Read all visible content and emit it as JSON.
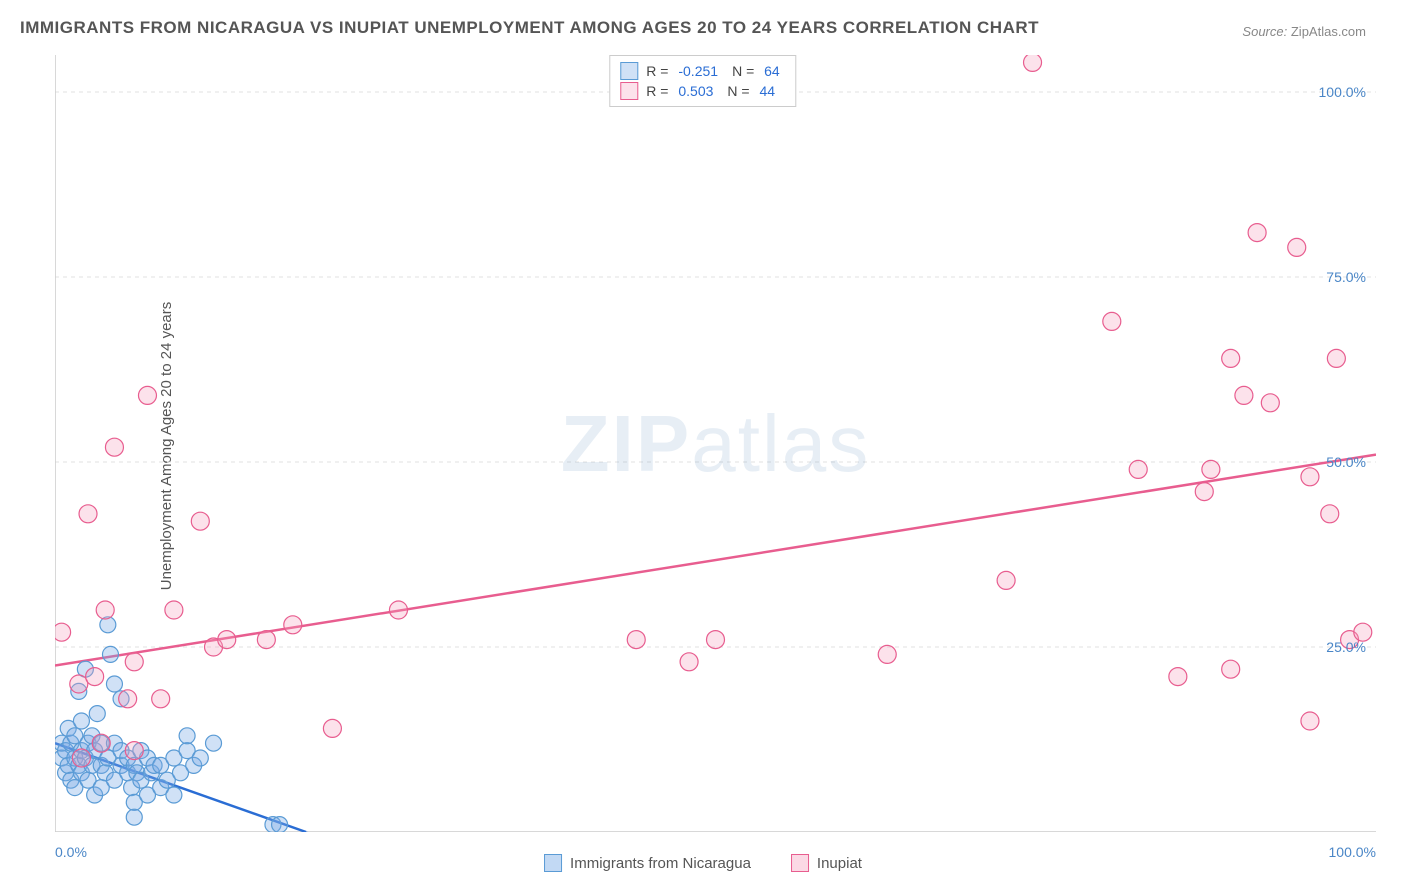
{
  "title": "IMMIGRANTS FROM NICARAGUA VS INUPIAT UNEMPLOYMENT AMONG AGES 20 TO 24 YEARS CORRELATION CHART",
  "source": {
    "label": "Source:",
    "value": "ZipAtlas.com"
  },
  "ylabel": "Unemployment Among Ages 20 to 24 years",
  "watermark": {
    "bold": "ZIP",
    "rest": "atlas"
  },
  "chart": {
    "type": "scatter",
    "xlim": [
      0,
      100
    ],
    "ylim": [
      0,
      105
    ],
    "xtick_positions": [
      0,
      20,
      40,
      60,
      80,
      100
    ],
    "ytick_positions": [
      25,
      50,
      75,
      100
    ],
    "ytick_labels": [
      "25.0%",
      "50.0%",
      "75.0%",
      "100.0%"
    ],
    "x_min_label": "0.0%",
    "x_max_label": "100.0%",
    "background_color": "#ffffff",
    "grid_color": "#e0e0e0",
    "axis_color": "#cccccc",
    "value_color": "#2a6dd4",
    "label_color": "#4a86c7",
    "series": [
      {
        "name": "Immigrants from Nicaragua",
        "marker_color_fill": "rgba(120,170,230,0.35)",
        "marker_color_stroke": "#5a9bd5",
        "line_color": "#2a6dd4",
        "marker_radius": 8,
        "correlation": {
          "R": "-0.251",
          "N": "64"
        },
        "trend": {
          "x1": 0,
          "y1": 12,
          "x2": 19,
          "y2": 0,
          "dash_ext_x": 28
        },
        "points": [
          [
            0.5,
            10
          ],
          [
            0.5,
            12
          ],
          [
            0.8,
            8
          ],
          [
            0.8,
            11
          ],
          [
            1.0,
            14
          ],
          [
            1.0,
            9
          ],
          [
            1.2,
            12
          ],
          [
            1.2,
            7
          ],
          [
            1.5,
            10
          ],
          [
            1.5,
            13
          ],
          [
            1.5,
            6
          ],
          [
            1.8,
            19
          ],
          [
            1.8,
            9
          ],
          [
            2.0,
            11
          ],
          [
            2.0,
            8
          ],
          [
            2.0,
            15
          ],
          [
            2.3,
            22
          ],
          [
            2.3,
            10
          ],
          [
            2.5,
            7
          ],
          [
            2.5,
            12
          ],
          [
            2.8,
            9
          ],
          [
            2.8,
            13
          ],
          [
            3.0,
            5
          ],
          [
            3.0,
            11
          ],
          [
            3.2,
            16
          ],
          [
            3.5,
            9
          ],
          [
            3.5,
            12
          ],
          [
            3.5,
            6
          ],
          [
            3.8,
            8
          ],
          [
            4.0,
            28
          ],
          [
            4.0,
            10
          ],
          [
            4.2,
            24
          ],
          [
            4.5,
            7
          ],
          [
            4.5,
            12
          ],
          [
            4.5,
            20
          ],
          [
            5.0,
            9
          ],
          [
            5.0,
            11
          ],
          [
            5.0,
            18
          ],
          [
            5.5,
            8
          ],
          [
            5.5,
            10
          ],
          [
            5.8,
            6
          ],
          [
            6.0,
            9
          ],
          [
            6.0,
            4
          ],
          [
            6.2,
            8
          ],
          [
            6.5,
            11
          ],
          [
            6.5,
            7
          ],
          [
            7.0,
            10
          ],
          [
            7.0,
            5
          ],
          [
            7.3,
            8
          ],
          [
            7.5,
            9
          ],
          [
            8.0,
            6
          ],
          [
            8.0,
            9
          ],
          [
            8.5,
            7
          ],
          [
            9.0,
            10
          ],
          [
            9.0,
            5
          ],
          [
            9.5,
            8
          ],
          [
            10.0,
            11
          ],
          [
            10.0,
            13
          ],
          [
            10.5,
            9
          ],
          [
            11.0,
            10
          ],
          [
            12.0,
            12
          ],
          [
            16.5,
            1
          ],
          [
            17.0,
            1
          ],
          [
            6.0,
            2
          ]
        ]
      },
      {
        "name": "Inupiat",
        "marker_color_fill": "rgba(245,160,190,0.30)",
        "marker_color_stroke": "#e85d8f",
        "line_color": "#e85d8f",
        "marker_radius": 9,
        "correlation": {
          "R": "0.503",
          "N": "44"
        },
        "trend": {
          "x1": 0,
          "y1": 22.5,
          "x2": 100,
          "y2": 51
        },
        "points": [
          [
            0.5,
            27
          ],
          [
            1.8,
            20
          ],
          [
            2.0,
            10
          ],
          [
            2.5,
            43
          ],
          [
            3.0,
            21
          ],
          [
            3.5,
            12
          ],
          [
            3.8,
            30
          ],
          [
            4.5,
            52
          ],
          [
            5.5,
            18
          ],
          [
            6.0,
            23
          ],
          [
            6.0,
            11
          ],
          [
            7.0,
            59
          ],
          [
            8.0,
            18
          ],
          [
            9.0,
            30
          ],
          [
            11.0,
            42
          ],
          [
            12.0,
            25
          ],
          [
            13.0,
            26
          ],
          [
            16.0,
            26
          ],
          [
            18.0,
            28
          ],
          [
            21.0,
            14
          ],
          [
            26.0,
            30
          ],
          [
            44.0,
            26
          ],
          [
            48.0,
            23
          ],
          [
            50.0,
            26
          ],
          [
            63.0,
            24
          ],
          [
            72.0,
            34
          ],
          [
            74.0,
            104
          ],
          [
            80.0,
            69
          ],
          [
            82.0,
            49
          ],
          [
            85.0,
            21
          ],
          [
            87.0,
            46
          ],
          [
            89.0,
            64
          ],
          [
            89.0,
            22
          ],
          [
            90.0,
            59
          ],
          [
            91.0,
            81
          ],
          [
            92.0,
            58
          ],
          [
            94.0,
            79
          ],
          [
            95.0,
            48
          ],
          [
            95.0,
            15
          ],
          [
            96.5,
            43
          ],
          [
            97.0,
            64
          ],
          [
            98.0,
            26
          ],
          [
            99.0,
            27
          ],
          [
            87.5,
            49
          ]
        ]
      }
    ]
  },
  "legend_bottom": [
    {
      "label": "Immigrants from Nicaragua",
      "fill": "rgba(120,170,230,0.45)",
      "stroke": "#5a9bd5"
    },
    {
      "label": "Inupiat",
      "fill": "rgba(245,160,190,0.40)",
      "stroke": "#e85d8f"
    }
  ]
}
